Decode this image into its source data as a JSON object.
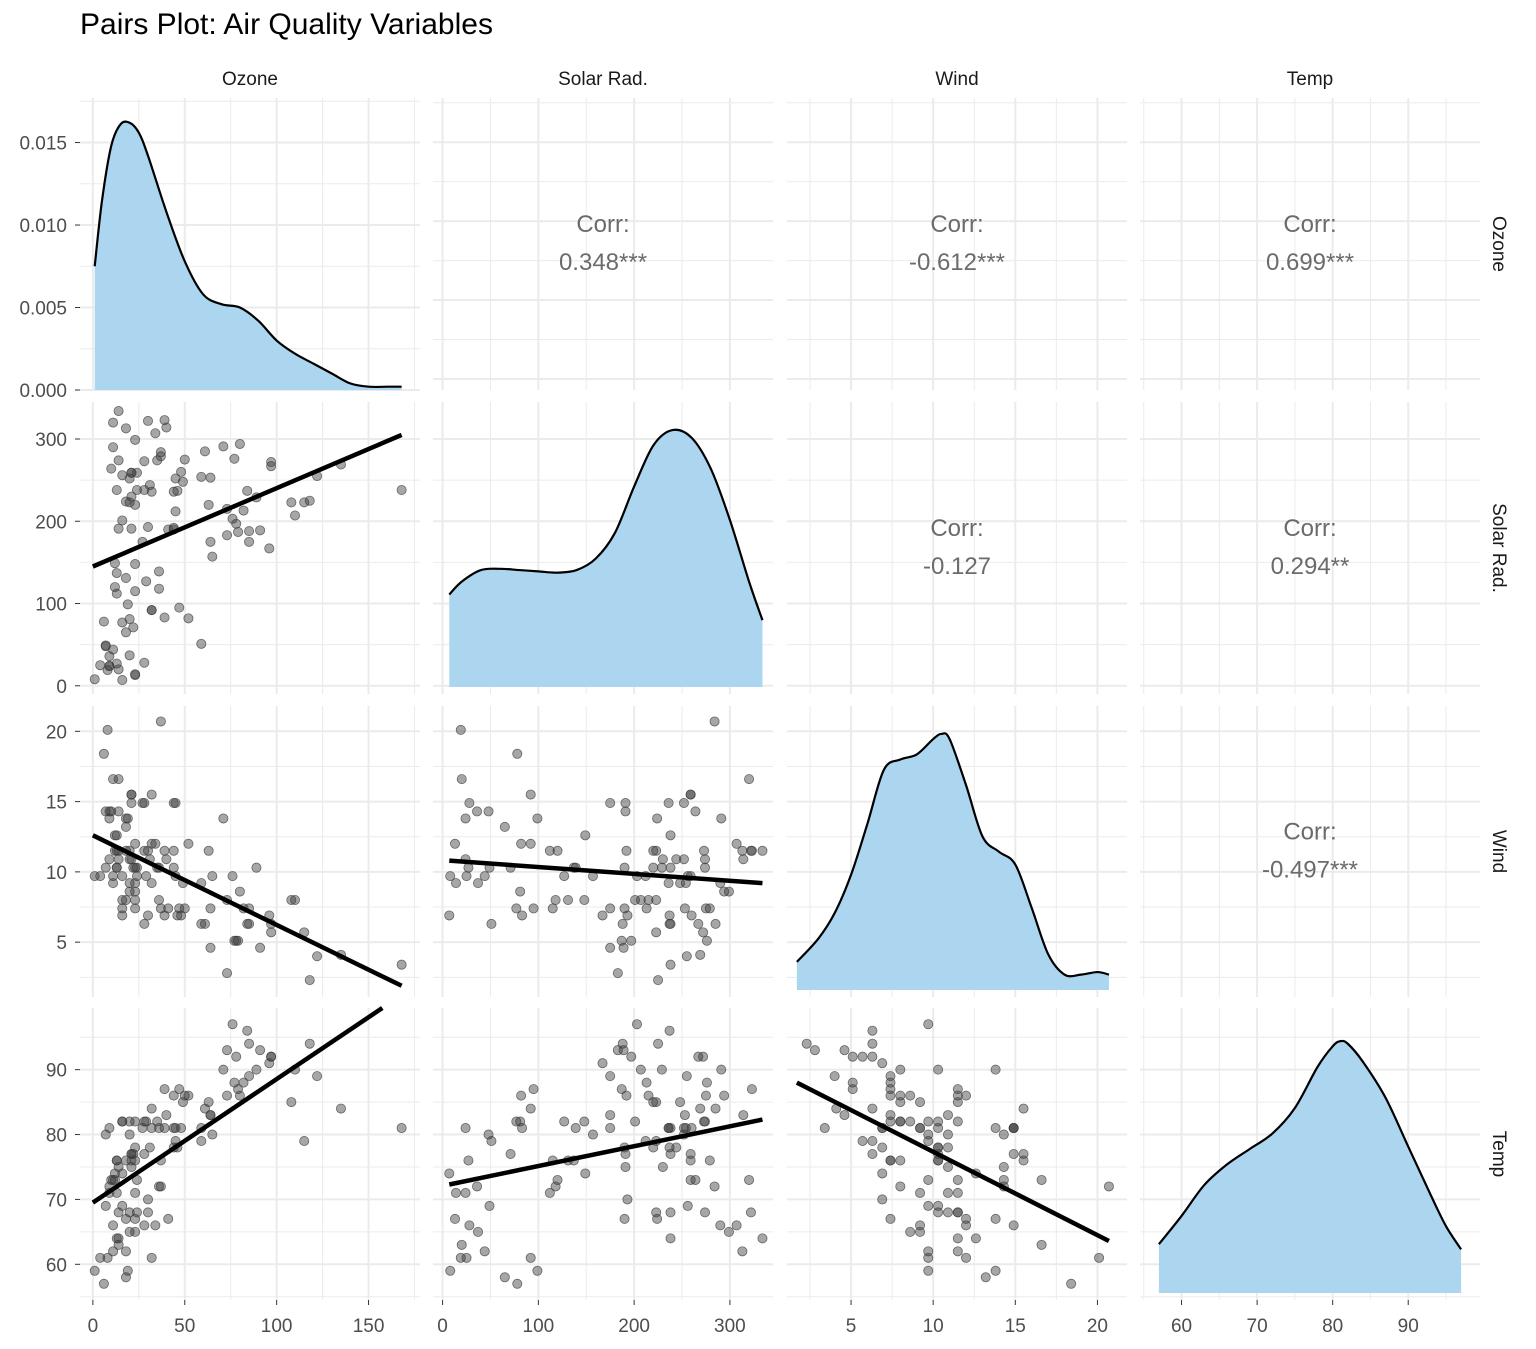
{
  "chart_data": {
    "type": "pairs",
    "title": "Pairs Plot: Air Quality Variables",
    "variables": [
      "Ozone",
      "Solar Rad.",
      "Wind",
      "Temp"
    ],
    "colors": {
      "density_fill": "#acd5ef",
      "density_line": "#000000",
      "point": "#3a3a3a",
      "fit_line": "#000000",
      "corr_text": "#6b6b6b",
      "grid": "#ebebeb",
      "axis_text": "#4d4d4d",
      "strip_text": "#1a1a1a"
    },
    "axes": {
      "Ozone": {
        "range": [
          -7,
          178
        ],
        "ticks": [
          0,
          50,
          100,
          150
        ],
        "tick_labels": [
          "0",
          "50",
          "100",
          "150"
        ]
      },
      "Solar Rad.": {
        "range": [
          -10,
          345
        ],
        "ticks": [
          0,
          100,
          200,
          300
        ],
        "tick_labels": [
          "0",
          "100",
          "200",
          "300"
        ]
      },
      "Wind": {
        "range": [
          1.1,
          21.8
        ],
        "ticks": [
          5,
          10,
          15,
          20
        ],
        "tick_labels": [
          "5",
          "10",
          "15",
          "20"
        ]
      },
      "Temp": {
        "range": [
          54.5,
          99.5
        ],
        "ticks": [
          60,
          70,
          80,
          90
        ],
        "tick_labels": [
          "60",
          "70",
          "80",
          "90"
        ]
      }
    },
    "density_axis": {
      "range": [
        0,
        0.0177
      ],
      "ticks": [
        0,
        0.005,
        0.01,
        0.015
      ],
      "tick_labels": [
        "0.000",
        "0.005",
        "0.010",
        "0.015"
      ]
    },
    "correlations": [
      {
        "row": 0,
        "col": 1,
        "label": "Corr:",
        "value": "0.348***"
      },
      {
        "row": 0,
        "col": 2,
        "label": "Corr:",
        "value": "-0.612***"
      },
      {
        "row": 0,
        "col": 3,
        "label": "Corr:",
        "value": "0.699***"
      },
      {
        "row": 1,
        "col": 2,
        "label": "Corr:",
        "value": "-0.127"
      },
      {
        "row": 1,
        "col": 3,
        "label": "Corr:",
        "value": "0.294**"
      },
      {
        "row": 2,
        "col": 3,
        "label": "Corr:",
        "value": "-0.497***"
      }
    ],
    "densities": {
      "Ozone": {
        "x": [
          1,
          5,
          10,
          15,
          20,
          25,
          30,
          40,
          50,
          60,
          70,
          80,
          90,
          100,
          110,
          120,
          130,
          140,
          150,
          160,
          168
        ],
        "y": [
          0.0075,
          0.0115,
          0.0148,
          0.0161,
          0.0162,
          0.0156,
          0.0142,
          0.0108,
          0.0078,
          0.0058,
          0.0052,
          0.005,
          0.0042,
          0.003,
          0.0022,
          0.0016,
          0.001,
          0.0004,
          0.0002,
          0.0002,
          0.0002
        ]
      },
      "Solar Rad.": {
        "x": [
          7,
          20,
          40,
          60,
          80,
          100,
          120,
          140,
          160,
          180,
          200,
          220,
          240,
          260,
          280,
          300,
          320,
          334
        ],
        "y": [
          0.36,
          0.41,
          0.455,
          0.46,
          0.455,
          0.45,
          0.445,
          0.455,
          0.5,
          0.6,
          0.78,
          0.94,
          1.0,
          0.97,
          0.85,
          0.65,
          0.41,
          0.26
        ]
      },
      "Wind": {
        "x": [
          1.7,
          3,
          4,
          5,
          6,
          7,
          8,
          9,
          10,
          10.5,
          11,
          12,
          13,
          14,
          15,
          16,
          17,
          18,
          19,
          20,
          20.7
        ],
        "y": [
          0.11,
          0.2,
          0.3,
          0.45,
          0.65,
          0.86,
          0.9,
          0.92,
          0.98,
          1.0,
          0.98,
          0.8,
          0.6,
          0.54,
          0.49,
          0.32,
          0.14,
          0.06,
          0.06,
          0.07,
          0.06
        ]
      },
      "Temp": {
        "x": [
          57,
          60,
          63,
          66,
          69,
          72,
          75,
          78,
          80,
          81,
          82,
          84,
          87,
          90,
          93,
          95,
          97
        ],
        "y": [
          0.19,
          0.3,
          0.42,
          0.5,
          0.56,
          0.62,
          0.72,
          0.88,
          0.96,
          0.98,
          0.97,
          0.9,
          0.76,
          0.57,
          0.38,
          0.26,
          0.17
        ]
      }
    },
    "fits": {
      "Ozone|Solar Rad.": [
        0,
        145,
        168,
        305
      ],
      "Ozone|Wind": [
        0,
        12.6,
        168,
        1.9
      ],
      "Solar Rad.|Wind": [
        7,
        10.8,
        334,
        9.2
      ],
      "Ozone|Temp": [
        0,
        69.5,
        168,
        101.5
      ],
      "Solar Rad.|Temp": [
        7,
        72.3,
        334,
        82.3
      ],
      "Wind|Temp": [
        1.7,
        88,
        20.7,
        63.6
      ]
    },
    "points": [
      [
        41,
        190,
        7.4,
        67
      ],
      [
        36,
        118,
        8,
        72
      ],
      [
        12,
        149,
        12.6,
        74
      ],
      [
        18,
        313,
        11.5,
        62
      ],
      [
        28,
        28,
        14.9,
        66
      ],
      [
        23,
        299,
        8.6,
        65
      ],
      [
        19,
        99,
        13.8,
        59
      ],
      [
        8,
        19,
        20.1,
        61
      ],
      [
        16,
        256,
        9.7,
        69
      ],
      [
        11,
        290,
        9.2,
        66
      ],
      [
        14,
        274,
        10.9,
        68
      ],
      [
        18,
        65,
        13.2,
        58
      ],
      [
        14,
        334,
        11.5,
        64
      ],
      [
        34,
        307,
        12,
        66
      ],
      [
        6,
        78,
        18.4,
        57
      ],
      [
        30,
        322,
        11.5,
        68
      ],
      [
        11,
        44,
        9.7,
        62
      ],
      [
        1,
        8,
        9.7,
        59
      ],
      [
        11,
        320,
        16.6,
        73
      ],
      [
        4,
        25,
        9.7,
        61
      ],
      [
        32,
        92,
        12,
        61
      ],
      [
        23,
        13,
        12,
        67
      ],
      [
        45,
        252,
        14.9,
        81
      ],
      [
        115,
        223,
        5.7,
        79
      ],
      [
        37,
        279,
        7.4,
        76
      ],
      [
        29,
        127,
        9.7,
        82
      ],
      [
        71,
        291,
        13.8,
        90
      ],
      [
        39,
        323,
        11.5,
        87
      ],
      [
        23,
        148,
        8,
        82
      ],
      [
        21,
        191,
        14.9,
        77
      ],
      [
        37,
        284,
        20.7,
        72
      ],
      [
        20,
        37,
        9.2,
        65
      ],
      [
        12,
        120,
        11.5,
        73
      ],
      [
        13,
        137,
        10.3,
        76
      ],
      [
        135,
        269,
        4.1,
        84
      ],
      [
        49,
        248,
        9.2,
        85
      ],
      [
        32,
        236,
        9.2,
        81
      ],
      [
        64,
        175,
        4.6,
        83
      ],
      [
        40,
        314,
        10.9,
        83
      ],
      [
        77,
        276,
        5.1,
        88
      ],
      [
        97,
        267,
        6.3,
        92
      ],
      [
        97,
        272,
        5.7,
        92
      ],
      [
        85,
        175,
        7.4,
        89
      ],
      [
        10,
        264,
        14.3,
        73
      ],
      [
        27,
        175,
        14.9,
        81
      ],
      [
        7,
        48,
        14.3,
        80
      ],
      [
        48,
        260,
        6.9,
        81
      ],
      [
        35,
        274,
        10.3,
        82
      ],
      [
        61,
        285,
        6.3,
        84
      ],
      [
        79,
        187,
        5.1,
        87
      ],
      [
        63,
        220,
        11.5,
        85
      ],
      [
        16,
        7,
        6.9,
        74
      ],
      [
        80,
        294,
        8.6,
        86
      ],
      [
        108,
        223,
        8,
        85
      ],
      [
        20,
        81,
        8.6,
        82
      ],
      [
        52,
        82,
        12,
        86
      ],
      [
        82,
        213,
        7.4,
        88
      ],
      [
        50,
        275,
        7.4,
        86
      ],
      [
        64,
        253,
        7.4,
        83
      ],
      [
        59,
        254,
        9.2,
        81
      ],
      [
        39,
        83,
        6.9,
        81
      ],
      [
        9,
        24,
        13.8,
        81
      ],
      [
        16,
        77,
        7.4,
        82
      ],
      [
        122,
        255,
        4,
        89
      ],
      [
        89,
        229,
        10.3,
        90
      ],
      [
        110,
        207,
        8,
        90
      ],
      [
        44,
        192,
        11.5,
        86
      ],
      [
        28,
        273,
        11.5,
        82
      ],
      [
        65,
        157,
        9.7,
        80
      ],
      [
        22,
        71,
        10.3,
        77
      ],
      [
        59,
        51,
        6.3,
        79
      ],
      [
        23,
        115,
        7.4,
        76
      ],
      [
        31,
        244,
        10.9,
        78
      ],
      [
        44,
        190,
        10.3,
        78
      ],
      [
        21,
        259,
        15.5,
        77
      ],
      [
        9,
        36,
        14.3,
        72
      ],
      [
        45,
        212,
        9.7,
        79
      ],
      [
        168,
        238,
        3.4,
        81
      ],
      [
        73,
        215,
        8,
        86
      ],
      [
        76,
        203,
        9.7,
        97
      ],
      [
        118,
        225,
        2.3,
        94
      ],
      [
        84,
        237,
        6.3,
        96
      ],
      [
        85,
        188,
        6.3,
        94
      ],
      [
        96,
        167,
        6.9,
        91
      ],
      [
        78,
        197,
        5.1,
        92
      ],
      [
        73,
        183,
        2.8,
        93
      ],
      [
        91,
        189,
        4.6,
        93
      ],
      [
        47,
        95,
        7.4,
        87
      ],
      [
        32,
        92,
        15.5,
        84
      ],
      [
        20,
        252,
        10.9,
        80
      ],
      [
        23,
        220,
        10.3,
        78
      ],
      [
        21,
        230,
        10.9,
        75
      ],
      [
        24,
        259,
        9.7,
        73
      ],
      [
        44,
        236,
        14.9,
        81
      ],
      [
        21,
        259,
        15.5,
        76
      ],
      [
        28,
        238,
        6.3,
        77
      ],
      [
        9,
        24,
        10.9,
        71
      ],
      [
        13,
        112,
        11.5,
        71
      ],
      [
        46,
        237,
        6.9,
        78
      ],
      [
        18,
        224,
        13.8,
        67
      ],
      [
        13,
        27,
        10.3,
        76
      ],
      [
        24,
        238,
        10.3,
        68
      ],
      [
        16,
        201,
        8,
        82
      ],
      [
        13,
        238,
        12.6,
        64
      ],
      [
        23,
        14,
        9.2,
        71
      ],
      [
        36,
        139,
        10.3,
        81
      ],
      [
        7,
        49,
        10.3,
        69
      ],
      [
        14,
        20,
        16.6,
        63
      ],
      [
        30,
        193,
        6.9,
        70
      ],
      [
        14,
        191,
        14.3,
        75
      ],
      [
        18,
        131,
        8,
        76
      ],
      [
        20,
        223,
        11.5,
        68
      ]
    ]
  }
}
